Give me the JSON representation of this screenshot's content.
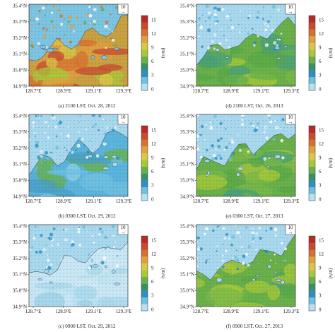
{
  "axes": {
    "y_ticks": [
      "35.4°N",
      "35.3°N",
      "35.2°N",
      "35.1°N",
      "35.0°N",
      "34.9°N"
    ],
    "x_ticks": [
      "128.7°E",
      "128.9°E",
      "129.1°E",
      "129.3°E"
    ]
  },
  "colorbar": {
    "ticks": [
      "15",
      "12",
      "9",
      "6",
      "3",
      "0"
    ],
    "unit": "(m/s)",
    "colors": [
      "#b8e0f0",
      "#6fc0e0",
      "#2f8fc0",
      "#3a8f6a",
      "#6ab04a",
      "#a8c83a",
      "#d8c848",
      "#e0a040",
      "#d87030",
      "#c84a30",
      "#b82a28"
    ]
  },
  "vector_reference": {
    "value": "10",
    "arrow": "→"
  },
  "panels": [
    {
      "id": "a",
      "caption": "(a) 2100 LST, Oct. 28, 2012",
      "wind_level": "strong"
    },
    {
      "id": "d",
      "caption": "(d) 2100 LST, Oct. 26, 2013",
      "wind_level": "moderate"
    },
    {
      "id": "b",
      "caption": "(b) 0300 LST, Oct. 29, 2012",
      "wind_level": "weak"
    },
    {
      "id": "e",
      "caption": "(e) 0300 LST, Oct. 27, 2013",
      "wind_level": "moderate"
    },
    {
      "id": "c",
      "caption": "(c) 0900 LST, Oct. 29, 2012",
      "wind_level": "calm"
    },
    {
      "id": "f",
      "caption": "(f) 0900 LST, Oct. 27, 2013",
      "wind_level": "moderate"
    }
  ]
}
